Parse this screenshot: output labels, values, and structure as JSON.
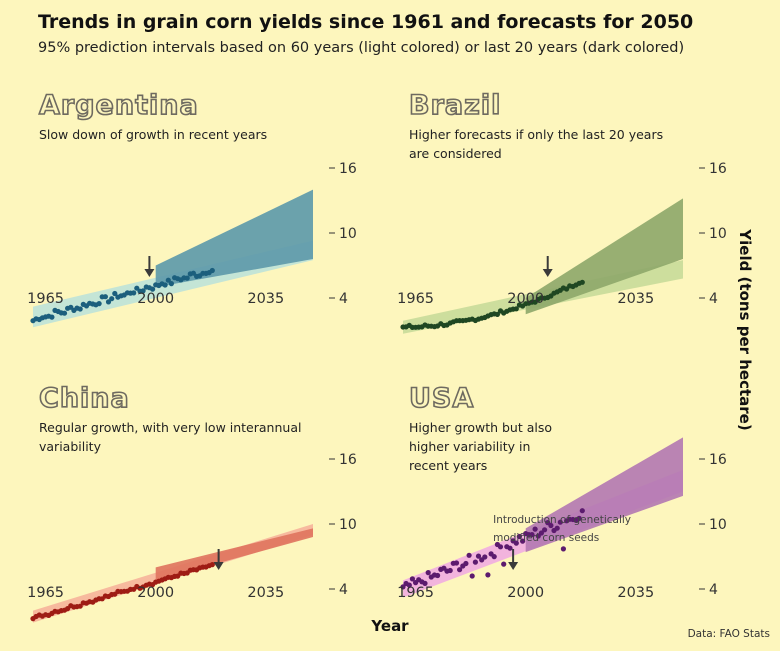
{
  "header": {
    "title": "Trends in grain corn yields since 1961 and forecasts for 2050",
    "subtitle": "95% prediction intervals based on 60 years (light colored) or last 20 years (dark colored)"
  },
  "footer": {
    "source": "Data: FAO Stats"
  },
  "chart_data": {
    "type": "scatter",
    "layout": "small-multiples",
    "xlabel": "Year",
    "ylabel": "Yield (tons per hectare)",
    "x_ticks": [
      1965,
      2000,
      2035
    ],
    "y_ticks": [
      4,
      10,
      16
    ],
    "xlim": [
      1961,
      2050
    ],
    "ylim": [
      0,
      18
    ],
    "colors": {
      "background": "#fdf6bd",
      "arrow": "#3a3a3a",
      "panel_title": "#6e6a60"
    },
    "panels": [
      {
        "name": "Argentina",
        "title": "Argentina",
        "annotation": [
          "Slow down of growth in recent years"
        ],
        "point_color": "#1c5f7d",
        "light_band_color": "#bfe3d8",
        "dark_band_color": "#5e9aaa",
        "arrow_year": 1998,
        "observed": {
          "start": 2.0,
          "end": 6.6,
          "noise": 0.28,
          "wobble": 0.3
        },
        "band_60y": {
          "from": 1961,
          "lower": [
            1961,
            1.3,
            2050,
            7.5
          ],
          "upper": [
            1961,
            3.2,
            2050,
            9.3
          ]
        },
        "band_20y": {
          "from": 2000,
          "lower": [
            2000,
            5.0,
            2050,
            7.6
          ],
          "upper": [
            2000,
            7.0,
            2050,
            14.0
          ]
        }
      },
      {
        "name": "Brazil",
        "title": "Brazil",
        "annotation": [
          "Higher forecasts if only the last 20 years",
          "are considered"
        ],
        "point_color": "#1f4722",
        "light_band_color": "#c9db9a",
        "dark_band_color": "#8fa86b",
        "arrow_year": 2007,
        "observed": {
          "start": 1.3,
          "end": 5.6,
          "noise": 0.15,
          "wobble": 0.1,
          "curve": 1.9
        },
        "band_60y": {
          "from": 1961,
          "lower": [
            1961,
            0.7,
            2050,
            5.8
          ],
          "upper": [
            1961,
            1.9,
            2050,
            7.5
          ]
        },
        "band_20y": {
          "from": 2000,
          "lower": [
            2000,
            2.5,
            2050,
            7.6
          ],
          "upper": [
            2000,
            4.0,
            2050,
            13.2
          ]
        }
      },
      {
        "name": "China",
        "title": "China",
        "annotation": [
          "Regular growth, with very low interannual",
          "variability"
        ],
        "point_color": "#9e1c14",
        "light_band_color": "#f6b49b",
        "dark_band_color": "#e07560",
        "arrow_year": 2020,
        "observed": {
          "start": 1.3,
          "end": 6.2,
          "noise": 0.14,
          "wobble": 0.15
        },
        "band_60y": {
          "from": 1961,
          "lower": [
            1961,
            0.9,
            2050,
            9.0
          ],
          "upper": [
            1961,
            2.0,
            2050,
            10.0
          ]
        },
        "band_20y": {
          "from": 2000,
          "lower": [
            2000,
            4.8,
            2050,
            8.8
          ],
          "upper": [
            2000,
            6.0,
            2050,
            9.6
          ]
        }
      },
      {
        "name": "USA",
        "title": "USA",
        "annotation": [
          "Higher growth but also",
          "higher variability in",
          "recent years"
        ],
        "note": [
          "Introduction of genetically",
          "modified corn seeds"
        ],
        "point_color": "#5c1b6e",
        "light_band_color": "#f1aee0",
        "dark_band_color": "#b47ab2",
        "arrow_year": 1996,
        "observed": {
          "start": 4.0,
          "end": 11.0,
          "noise": 0.5,
          "wobble": 0.3,
          "dips": [
            [
              1983,
              5.2
            ],
            [
              1988,
              5.3
            ],
            [
              1993,
              6.3
            ],
            [
              2012,
              7.7
            ]
          ]
        },
        "band_60y": {
          "from": 1961,
          "lower": [
            1961,
            3.2,
            2050,
            13.0
          ],
          "upper": [
            1961,
            4.8,
            2050,
            15.0
          ]
        },
        "band_20y": {
          "from": 2000,
          "lower": [
            2000,
            7.4,
            2050,
            12.6
          ],
          "upper": [
            2000,
            9.6,
            2050,
            18.0
          ]
        }
      }
    ]
  }
}
